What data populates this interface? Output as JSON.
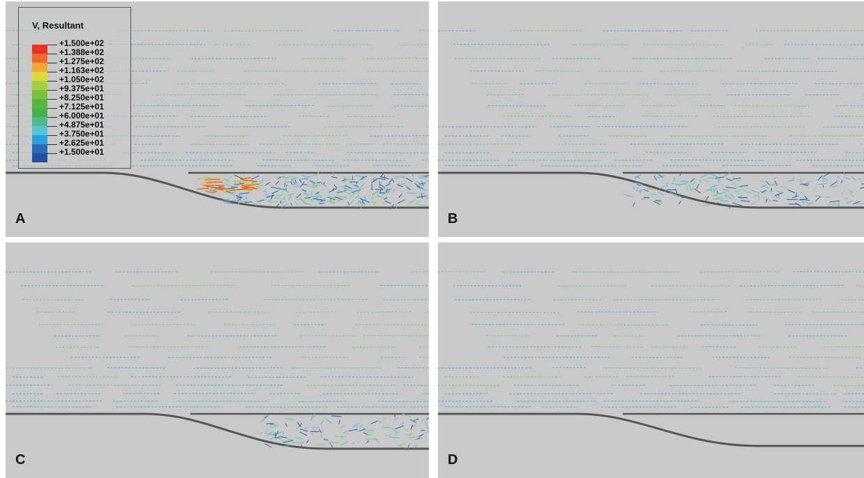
{
  "panels": [
    {
      "id": "A",
      "label": "A"
    },
    {
      "id": "B",
      "label": "B"
    },
    {
      "id": "C",
      "label": "C"
    },
    {
      "id": "D",
      "label": "D"
    }
  ],
  "legend": {
    "title": "V, Resultant",
    "labels": [
      "+1.500e+02",
      "+1.388e+02",
      "+1.275e+02",
      "+1.163e+02",
      "+1.050e+02",
      "+9.375e+01",
      "+8.250e+01",
      "+7.125e+01",
      "+6.000e+01",
      "+4.875e+01",
      "+3.750e+01",
      "+2.625e+01",
      "+1.500e+01"
    ],
    "colors": [
      "#e8312b",
      "#ef6a30",
      "#f5a53a",
      "#dcd93c",
      "#a9cf3a",
      "#7cbf3a",
      "#56b53e",
      "#4bb04a",
      "#4fba8a",
      "#57c3d4",
      "#2aa0df",
      "#2b6cb7",
      "#2250a3"
    ]
  },
  "colors": {
    "panel_bg": "#c9c9c9",
    "wall": "#555555",
    "vector_main": "#7cc98d",
    "vector_low": "#5ab7d0",
    "vector_slow": "#2f60b5",
    "vector_fast": "#e8642e"
  }
}
